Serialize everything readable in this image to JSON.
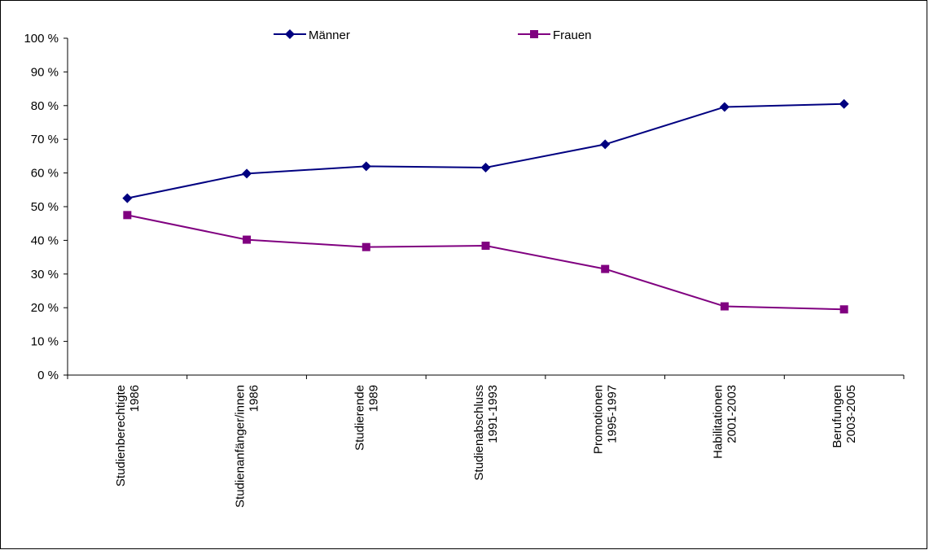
{
  "chart_data": {
    "type": "line",
    "categories": [
      [
        "Studienberechtigte",
        "1986"
      ],
      [
        "Studienanfänger/innen",
        "1986"
      ],
      [
        "Studierende",
        "1989"
      ],
      [
        "Studienabschluss",
        "1991-1993"
      ],
      [
        "Promotionen",
        "1995-1997"
      ],
      [
        "Habilitationen",
        "2001-2003"
      ],
      [
        "Berufungen",
        "2003-2005"
      ]
    ],
    "series": [
      {
        "name": "Männer",
        "color": "#000080",
        "marker": "diamond",
        "values": [
          52.5,
          59.8,
          62.0,
          61.6,
          68.5,
          79.6,
          80.5
        ]
      },
      {
        "name": "Frauen",
        "color": "#800080",
        "marker": "square",
        "values": [
          47.5,
          40.2,
          38.0,
          38.4,
          31.5,
          20.4,
          19.5
        ]
      }
    ],
    "ylim": [
      0,
      100
    ],
    "yticks": [
      0,
      10,
      20,
      30,
      40,
      50,
      60,
      70,
      80,
      90,
      100
    ],
    "ytick_labels": [
      "0 %",
      "10 %",
      "20 %",
      "30 %",
      "40 %",
      "50 %",
      "60 %",
      "70 %",
      "80 %",
      "90 %",
      "100 %"
    ],
    "title": "",
    "xlabel": "",
    "ylabel": "",
    "grid": false,
    "legend_position": "top"
  }
}
